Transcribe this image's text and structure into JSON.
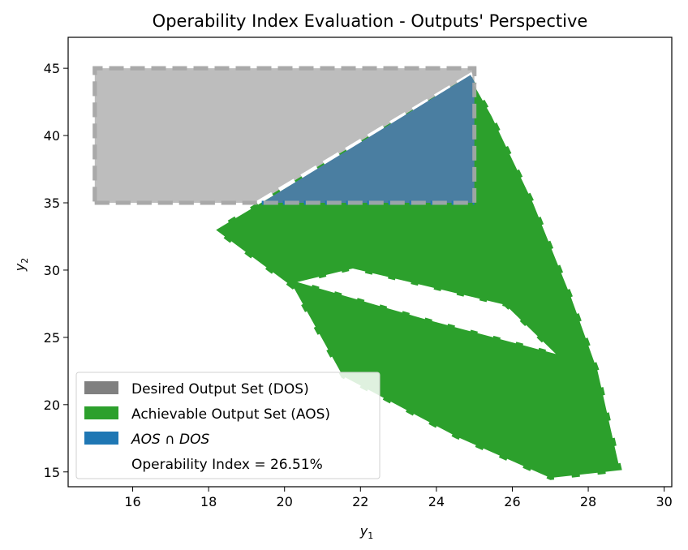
{
  "chart_data": {
    "type": "area",
    "title": "Operability Index Evaluation - Outputs' Perspective",
    "xlabel": "y",
    "xlabel_sub": "1",
    "ylabel": "y",
    "ylabel_sub": "2",
    "xlim": [
      14.3,
      30.2
    ],
    "ylim": [
      13.9,
      47.3
    ],
    "xticks": [
      "16",
      "18",
      "20",
      "22",
      "24",
      "26",
      "28",
      "30"
    ],
    "yticks": [
      "15",
      "20",
      "25",
      "30",
      "35",
      "40",
      "45"
    ],
    "grid": false,
    "legend_position": "lower-left",
    "legend": [
      {
        "label": "Desired Output Set (DOS)",
        "color": "#808080"
      },
      {
        "label": "Achievable Output Set (AOS)",
        "color": "#2ca02c"
      },
      {
        "label": "AOS ∩ DOS",
        "color": "#1f77b4",
        "italic": true
      },
      {
        "label": "Operability Index = 26.51%",
        "color": "none"
      }
    ],
    "operability_index": "26.51%",
    "series": [
      {
        "name": "Desired Output Set (DOS)",
        "color": "#bdbdbd",
        "edge": "#a9a9a9",
        "points": [
          [
            15,
            35
          ],
          [
            25,
            35
          ],
          [
            25,
            45
          ],
          [
            15,
            45
          ]
        ]
      },
      {
        "name": "Achievable Output Set (AOS)",
        "color": "#2ca02c",
        "edge": "#ffffff",
        "points": [
          [
            18.1,
            33
          ],
          [
            24.9,
            44.5
          ],
          [
            25.5,
            41.5
          ],
          [
            26.6,
            35
          ],
          [
            27.6,
            28
          ],
          [
            28.3,
            22.5
          ],
          [
            28.9,
            15
          ],
          [
            27.0,
            14.4
          ],
          [
            24.5,
            17.5
          ],
          [
            21.5,
            22
          ],
          [
            20.2,
            28.6
          ]
        ]
      },
      {
        "name": "AOS ∩ DOS",
        "color": "#4a7ea1",
        "points": [
          [
            19.4,
            35
          ],
          [
            24.9,
            44.5
          ],
          [
            25.0,
            44.0
          ],
          [
            25.0,
            35
          ]
        ]
      }
    ],
    "holes": [
      {
        "points": [
          [
            20.5,
            29.1
          ],
          [
            21.8,
            30
          ],
          [
            25.8,
            27.3
          ],
          [
            27.0,
            24.0
          ],
          [
            26.2,
            24.6
          ],
          [
            23.8,
            26.4
          ]
        ]
      }
    ]
  }
}
